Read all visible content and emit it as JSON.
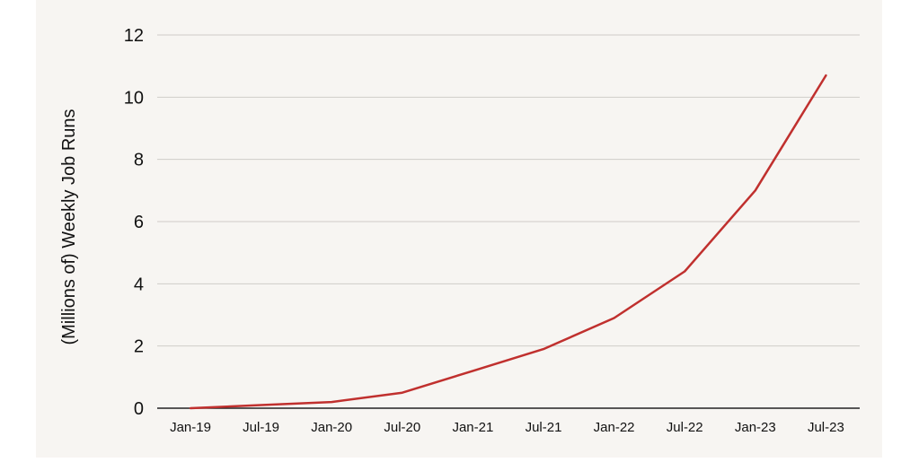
{
  "chart_data": {
    "type": "line",
    "title": "",
    "xlabel": "",
    "ylabel": "(Millions of) Weekly Job Runs",
    "categories": [
      "Jan-19",
      "Jul-19",
      "Jan-20",
      "Jul-20",
      "Jan-21",
      "Jul-21",
      "Jan-22",
      "Jul-22",
      "Jan-23",
      "Jul-23"
    ],
    "series": [
      {
        "values": [
          0.0,
          0.1,
          0.2,
          0.5,
          1.2,
          1.9,
          2.9,
          4.4,
          7.0,
          10.7
        ]
      }
    ],
    "ylim": [
      0,
      12
    ],
    "yticks": [
      0,
      2,
      4,
      6,
      8,
      10,
      12
    ],
    "grid": true,
    "legend": "none",
    "colors": {
      "line": "#c0302e",
      "grid": "#cfccc8",
      "axis": "#222222",
      "background": "#f7f5f2"
    }
  }
}
